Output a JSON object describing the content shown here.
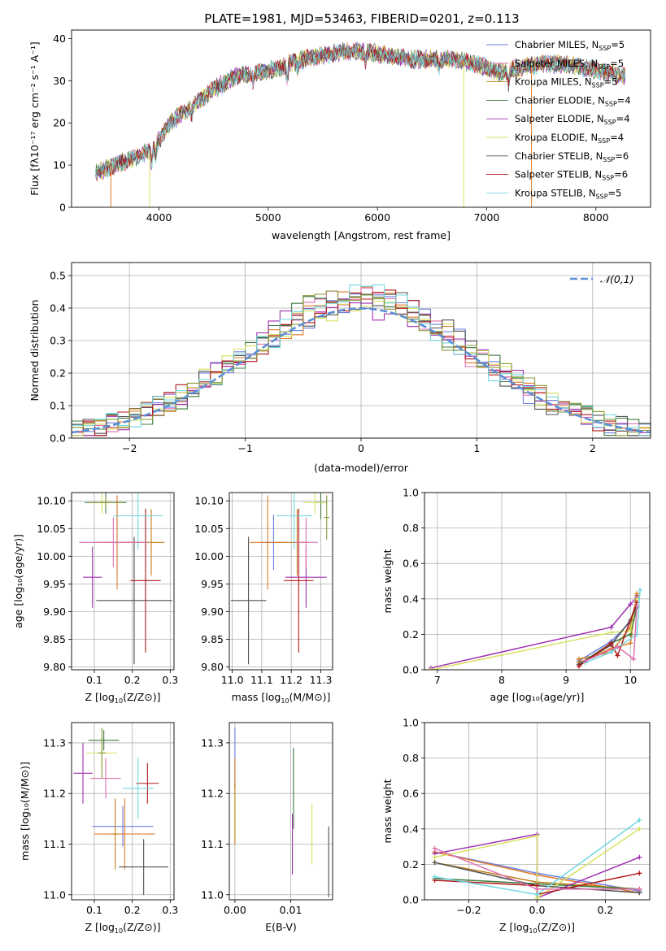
{
  "figure_title": "PLATE=1981, MJD=53463, FIBERID=0201, z=0.113",
  "colors": [
    "#6a7fe0",
    "#e07a2a",
    "#c47d18",
    "#3e7a3e",
    "#a030b0",
    "#d8e060",
    "#505050",
    "#b01818",
    "#70d8e0",
    "#e070b0",
    "#8a9a38"
  ],
  "chart_data": [
    {
      "id": "spectrum",
      "type": "line",
      "title": "PLATE=1981, MJD=53463, FIBERID=0201, z=0.113",
      "xlabel": "wavelength [Angstrom, rest frame]",
      "ylabel": "Flux [fλ10⁻¹⁷ erg cm⁻² s⁻¹ A⁻¹]",
      "xlim": [
        3200,
        8500
      ],
      "ylim": [
        0,
        42
      ],
      "xticks": [
        4000,
        5000,
        6000,
        7000,
        8000
      ],
      "yticks": [
        0,
        10,
        20,
        30,
        40
      ],
      "grid": false,
      "legend_position": "top-right",
      "continuum": {
        "x": [
          3420,
          3600,
          3800,
          3950,
          4100,
          4300,
          4500,
          4700,
          4900,
          5100,
          5300,
          5500,
          5700,
          5900,
          6100,
          6300,
          6500,
          6700,
          6900,
          7100,
          7300,
          7500,
          7700,
          7900,
          8100,
          8270
        ],
        "y": [
          8,
          10,
          12,
          14,
          20,
          24,
          28,
          31,
          32,
          33,
          35,
          36,
          37,
          37,
          36,
          35,
          35,
          35,
          34,
          32,
          33,
          34,
          34,
          33,
          32,
          31
        ]
      },
      "series": [
        {
          "name": "Chabrier MILES, N_SSP=5",
          "name_main": "Chabrier MILES, N",
          "name_sub": "SSP",
          "name_end": "=5"
        },
        {
          "name": "Salpeter MILES, N_SSP=5",
          "name_main": "Salpeter MILES, N",
          "name_sub": "SSP",
          "name_end": "=5"
        },
        {
          "name": "Kroupa MILES, N_SSP=5",
          "name_main": "Kroupa MILES, N",
          "name_sub": "SSP",
          "name_end": "=5"
        },
        {
          "name": "Chabrier ELODIE, N_SSP=4",
          "name_main": "Chabrier ELODIE, N",
          "name_sub": "SSP",
          "name_end": "=4"
        },
        {
          "name": "Salpeter ELODIE, N_SSP=4",
          "name_main": "Salpeter ELODIE, N",
          "name_sub": "SSP",
          "name_end": "=4"
        },
        {
          "name": "Kroupa ELODIE, N_SSP=4",
          "name_main": "Kroupa ELODIE, N",
          "name_sub": "SSP",
          "name_end": "=4"
        },
        {
          "name": "Chabrier STELIB, N_SSP=6",
          "name_main": "Chabrier STELIB, N",
          "name_sub": "SSP",
          "name_end": "=6"
        },
        {
          "name": "Salpeter STELIB, N_SSP=6",
          "name_main": "Salpeter STELIB, N",
          "name_sub": "SSP",
          "name_end": "=6"
        },
        {
          "name": "Kroupa STELIB, N_SSP=5",
          "name_main": "Kroupa STELIB, N",
          "name_sub": "SSP",
          "name_end": "=5"
        }
      ]
    },
    {
      "id": "residuals",
      "type": "line",
      "xlabel": "(data-model)/error",
      "ylabel": "Normed distribution",
      "xlim": [
        -2.5,
        2.5
      ],
      "ylim": [
        0,
        0.54
      ],
      "xticks": [
        -2,
        -1,
        0,
        1,
        2
      ],
      "xtick_labels": [
        "−2",
        "−1",
        "0",
        "1",
        "2"
      ],
      "yticks": [
        0,
        0.1,
        0.2,
        0.3,
        0.4,
        0.5
      ],
      "ytick_labels": [
        "0.0",
        "0.1",
        "0.2",
        "0.3",
        "0.4",
        "0.5"
      ],
      "grid": true,
      "legend_position": "top-right",
      "reference_curve": {
        "name": "𝒩(0,1)",
        "mu": 0,
        "sigma": 1
      },
      "bin_width": 0.1
    },
    {
      "id": "age-vs-Z",
      "type": "scatter",
      "xlabel_main": "Z [log",
      "xlabel_tail": "(Z/Z⊙)]",
      "ylabel": "age  [log₁₀(age/yr)]",
      "xlim": [
        0.04,
        0.31
      ],
      "ylim": [
        9.795,
        10.115
      ],
      "xticks": [
        0.1,
        0.2,
        0.3
      ],
      "xtick_labels": [
        "0.1",
        "0.2",
        "0.3"
      ],
      "yticks": [
        9.8,
        9.85,
        9.9,
        9.95,
        10.0,
        10.05,
        10.1
      ],
      "ytick_labels": [
        "9.80",
        "9.85",
        "9.90",
        "9.95",
        "10.00",
        "10.05",
        "10.10"
      ],
      "grid": true,
      "points": [
        {
          "x": 0.16,
          "xerr": 0.04,
          "y": 10.025,
          "yerr": 0.05
        },
        {
          "x": 0.16,
          "xerr": 0.06,
          "y": 10.025,
          "yerr": 0.085
        },
        {
          "x": 0.25,
          "xerr": 0.035,
          "y": 10.025,
          "yerr": 0.06
        },
        {
          "x": 0.13,
          "xerr": 0.055,
          "y": 10.097,
          "yerr": 0.02
        },
        {
          "x": 0.095,
          "xerr": 0.025,
          "y": 9.962,
          "yerr": 0.055
        },
        {
          "x": 0.12,
          "xerr": 0.015,
          "y": 10.097,
          "yerr": 0.02
        },
        {
          "x": 0.205,
          "xerr": 0.1,
          "y": 9.92,
          "yerr": 0.115
        },
        {
          "x": 0.235,
          "xerr": 0.04,
          "y": 9.956,
          "yerr": 0.13
        },
        {
          "x": 0.215,
          "xerr": 0.065,
          "y": 10.073,
          "yerr": 0.06
        },
        {
          "x": 0.15,
          "xerr": 0.09,
          "y": 10.025,
          "yerr": 0.045
        },
        {
          "x": 0.13,
          "xerr": 0.045,
          "y": 10.097,
          "yerr": 0.01
        }
      ]
    },
    {
      "id": "age-vs-mass",
      "type": "scatter",
      "xlabel_main": "mass [log",
      "xlabel_tail": "(M/M⊙)]",
      "xlim": [
        10.99,
        11.34
      ],
      "ylim": [
        9.795,
        10.115
      ],
      "xticks": [
        11.0,
        11.1,
        11.2,
        11.3
      ],
      "xtick_labels": [
        "11.0",
        "11.1",
        "11.2",
        "11.3"
      ],
      "yticks": [
        9.8,
        9.85,
        9.9,
        9.95,
        10.0,
        10.05,
        10.1
      ],
      "ytick_labels": [
        "9.80",
        "9.85",
        "9.90",
        "9.95",
        "10.00",
        "10.05",
        "10.10"
      ],
      "grid": true,
      "points": [
        {
          "x": 11.14,
          "xerr": 0.04,
          "y": 10.025,
          "yerr": 0.05
        },
        {
          "x": 11.12,
          "xerr": 0.06,
          "y": 10.025,
          "yerr": 0.085
        },
        {
          "x": 11.22,
          "xerr": 0.04,
          "y": 10.025,
          "yerr": 0.06
        },
        {
          "x": 11.3,
          "xerr": 0.02,
          "y": 10.097,
          "yerr": 0.03
        },
        {
          "x": 11.25,
          "xerr": 0.07,
          "y": 9.962,
          "yerr": 0.055
        },
        {
          "x": 11.28,
          "xerr": 0.04,
          "y": 10.097,
          "yerr": 0.02
        },
        {
          "x": 11.055,
          "xerr": 0.06,
          "y": 9.92,
          "yerr": 0.115
        },
        {
          "x": 11.225,
          "xerr": 0.05,
          "y": 9.956,
          "yerr": 0.13
        },
        {
          "x": 11.21,
          "xerr": 0.06,
          "y": 10.073,
          "yerr": 0.06
        },
        {
          "x": 11.25,
          "xerr": 0.04,
          "y": 10.025,
          "yerr": 0.045
        },
        {
          "x": 11.32,
          "xerr": 0.01,
          "y": 10.07,
          "yerr": 0.04
        }
      ]
    },
    {
      "id": "weight-vs-age",
      "type": "line",
      "xlabel": "age  [log₁₀(age/yr)]",
      "ylabel": "mass weight",
      "xlim": [
        6.8,
        10.3
      ],
      "ylim": [
        0,
        1
      ],
      "xticks": [
        7,
        8,
        9,
        10
      ],
      "xtick_labels": [
        "7",
        "8",
        "9",
        "10"
      ],
      "yticks": [
        0,
        0.2,
        0.4,
        0.6,
        0.8,
        1.0
      ],
      "ytick_labels": [
        "0.0",
        "0.2",
        "0.4",
        "0.6",
        "0.8",
        "1.0"
      ],
      "grid": true,
      "series": [
        {
          "x": [
            9.2,
            9.7,
            10.0,
            10.1
          ],
          "y": [
            0.05,
            0.16,
            0.27,
            0.4
          ]
        },
        {
          "x": [
            9.2,
            9.7,
            10.0,
            10.1
          ],
          "y": [
            0.04,
            0.12,
            0.15,
            0.43
          ]
        },
        {
          "x": [
            9.2,
            9.7,
            10.0,
            10.1
          ],
          "y": [
            0.06,
            0.1,
            0.24,
            0.42
          ]
        },
        {
          "x": [
            9.2,
            9.7,
            10.0,
            10.1
          ],
          "y": [
            0.03,
            0.15,
            0.2,
            0.35
          ]
        },
        {
          "x": [
            6.9,
            9.7,
            10.0,
            10.1
          ],
          "y": [
            0.01,
            0.24,
            0.37,
            0.41
          ]
        },
        {
          "x": [
            6.9,
            9.7,
            10.0,
            10.1
          ],
          "y": [
            0.0,
            0.21,
            0.22,
            0.4
          ]
        },
        {
          "x": [
            9.2,
            9.7,
            10.0,
            10.1
          ],
          "y": [
            0.03,
            0.14,
            0.28,
            0.36
          ]
        },
        {
          "x": [
            9.2,
            9.7,
            9.8,
            10.1
          ],
          "y": [
            0.02,
            0.15,
            0.08,
            0.38
          ]
        },
        {
          "x": [
            9.3,
            9.7,
            10.1,
            10.15
          ],
          "y": [
            0.04,
            0.1,
            0.2,
            0.45
          ]
        },
        {
          "x": [
            9.3,
            9.8,
            10.05,
            10.1
          ],
          "y": [
            0.05,
            0.13,
            0.06,
            0.36
          ]
        }
      ]
    },
    {
      "id": "mass-vs-Z",
      "type": "scatter",
      "xlabel_main": "Z [log",
      "xlabel_tail": "(Z/Z⊙)]",
      "ylabel": "mass [log₁₀(M/M⊙)]",
      "xlim": [
        0.04,
        0.31
      ],
      "ylim": [
        10.99,
        11.34
      ],
      "xticks": [
        0.1,
        0.2,
        0.3
      ],
      "xtick_labels": [
        "0.1",
        "0.2",
        "0.3"
      ],
      "yticks": [
        11.0,
        11.1,
        11.2,
        11.3
      ],
      "ytick_labels": [
        "11.0",
        "11.1",
        "11.2",
        "11.3"
      ],
      "grid": true,
      "points": [
        {
          "x": 0.175,
          "xerr": 0.08,
          "y": 11.135,
          "yerr": 0.04
        },
        {
          "x": 0.18,
          "xerr": 0.08,
          "y": 11.12,
          "yerr": 0.07
        },
        {
          "x": 0.155,
          "xerr": 0.01,
          "y": 11.12,
          "yerr": 0.07
        },
        {
          "x": 0.125,
          "xerr": 0.04,
          "y": 11.305,
          "yerr": 0.02
        },
        {
          "x": 0.07,
          "xerr": 0.025,
          "y": 11.24,
          "yerr": 0.06
        },
        {
          "x": 0.12,
          "xerr": 0.04,
          "y": 11.28,
          "yerr": 0.03
        },
        {
          "x": 0.23,
          "xerr": 0.065,
          "y": 11.055,
          "yerr": 0.055
        },
        {
          "x": 0.24,
          "xerr": 0.03,
          "y": 11.22,
          "yerr": 0.04
        },
        {
          "x": 0.215,
          "xerr": 0.04,
          "y": 11.21,
          "yerr": 0.06
        },
        {
          "x": 0.13,
          "xerr": 0.04,
          "y": 11.23,
          "yerr": 0.04
        },
        {
          "x": 0.12,
          "xerr": 0.01,
          "y": 11.28,
          "yerr": 0.05
        }
      ]
    },
    {
      "id": "mass-vs-EBV",
      "type": "scatter",
      "xlabel": "E(B-V)",
      "xlim": [
        -0.001,
        0.0175
      ],
      "ylim": [
        10.99,
        11.34
      ],
      "xticks": [
        0.0,
        0.01
      ],
      "xtick_labels": [
        "0.00",
        "0.01"
      ],
      "yticks": [
        11.0,
        11.1,
        11.2,
        11.3
      ],
      "ytick_labels": [
        "11.0",
        "11.1",
        "11.2",
        "11.3"
      ],
      "grid": true,
      "points": [
        {
          "x": 0.0,
          "y": 11.27,
          "yerr": 0.06
        },
        {
          "x": 0.0,
          "y": 11.24,
          "yerr": 0.03
        },
        {
          "x": 0.0,
          "y": 11.16,
          "yerr": 0.06
        },
        {
          "x": 0.0105,
          "y": 11.21,
          "yerr": 0.08
        },
        {
          "x": 0.0103,
          "y": 11.1,
          "yerr": 0.06
        },
        {
          "x": 0.0138,
          "y": 11.12,
          "yerr": 0.06
        },
        {
          "x": 0.0168,
          "y": 11.065,
          "yerr": 0.07
        }
      ]
    },
    {
      "id": "weight-vs-Z",
      "type": "line",
      "xlabel_main": "Z [log",
      "xlabel_tail": "(Z/Z⊙)]",
      "ylabel": "mass weight",
      "xlim": [
        -0.33,
        0.33
      ],
      "ylim": [
        0,
        1
      ],
      "xticks": [
        -0.2,
        0.0,
        0.2
      ],
      "xtick_labels": [
        "−0.2",
        "0.0",
        "0.2"
      ],
      "yticks": [
        0,
        0.2,
        0.4,
        0.6,
        0.8,
        1.0
      ],
      "ytick_labels": [
        "0.0",
        "0.2",
        "0.4",
        "0.6",
        "0.8",
        "1.0"
      ],
      "grid": true,
      "series": [
        {
          "x": [
            -0.3,
            0.0,
            0.3
          ],
          "y": [
            0.27,
            0.15,
            0.05
          ]
        },
        {
          "x": [
            -0.3,
            0.0,
            0.3
          ],
          "y": [
            0.27,
            0.14,
            0.04
          ]
        },
        {
          "x": [
            -0.3,
            0.0,
            0.3
          ],
          "y": [
            0.21,
            0.1,
            0.06
          ]
        },
        {
          "x": [
            -0.3,
            0.0,
            0.3
          ],
          "y": [
            0.12,
            0.09,
            0.06
          ]
        },
        {
          "x": [
            -0.3,
            0.0,
            0.0,
            0.3
          ],
          "y": [
            0.26,
            0.37,
            0.01,
            0.24
          ]
        },
        {
          "x": [
            -0.3,
            0.0,
            0.0,
            0.3
          ],
          "y": [
            0.24,
            0.36,
            0.01,
            0.4
          ]
        },
        {
          "x": [
            -0.3,
            0.0,
            0.3
          ],
          "y": [
            0.21,
            0.08,
            0.04
          ]
        },
        {
          "x": [
            -0.3,
            0.0,
            0.0,
            0.3
          ],
          "y": [
            0.11,
            0.08,
            0.03,
            0.15
          ]
        },
        {
          "x": [
            -0.3,
            0.0,
            0.3
          ],
          "y": [
            0.13,
            0.03,
            0.45
          ]
        },
        {
          "x": [
            -0.3,
            0.0,
            0.3
          ],
          "y": [
            0.29,
            0.06,
            0.06
          ]
        }
      ]
    }
  ]
}
